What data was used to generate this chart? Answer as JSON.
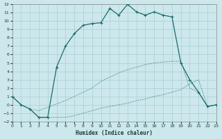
{
  "xlabel": "Humidex (Indice chaleur)",
  "bg_color": "#cce8ec",
  "grid_color": "#aacdd4",
  "line_color": "#1a6b6b",
  "xlim": [
    0,
    23
  ],
  "ylim": [
    -2,
    12
  ],
  "xticks": [
    0,
    1,
    2,
    3,
    4,
    5,
    6,
    7,
    8,
    9,
    10,
    11,
    12,
    13,
    14,
    15,
    16,
    17,
    18,
    19,
    20,
    21,
    22,
    23
  ],
  "yticks": [
    -2,
    -1,
    0,
    1,
    2,
    3,
    4,
    5,
    6,
    7,
    8,
    9,
    10,
    11,
    12
  ],
  "curve1_x": [
    0,
    1,
    2,
    3,
    4,
    5,
    6,
    7,
    8,
    9,
    10,
    11,
    12,
    13,
    14,
    15,
    16,
    17,
    18,
    19,
    20,
    21,
    22,
    23
  ],
  "curve1_y": [
    1.0,
    0.0,
    -0.5,
    -1.5,
    -1.5,
    -1.5,
    -1.5,
    -1.3,
    -1.0,
    -0.7,
    -0.4,
    -0.2,
    0.0,
    0.2,
    0.5,
    0.7,
    1.0,
    1.2,
    1.5,
    1.8,
    2.5,
    3.0,
    -0.2,
    0.0
  ],
  "curve2_x": [
    0,
    1,
    2,
    3,
    4,
    5,
    6,
    7,
    8,
    9,
    10,
    11,
    12,
    13,
    14,
    15,
    16,
    17,
    18,
    19,
    20,
    21,
    22,
    23
  ],
  "curve2_y": [
    1.0,
    0.0,
    -0.5,
    -0.7,
    -0.3,
    0.1,
    0.5,
    1.0,
    1.5,
    2.0,
    2.8,
    3.3,
    3.8,
    4.2,
    4.5,
    4.8,
    5.0,
    5.1,
    5.2,
    5.2,
    2.0,
    1.5,
    -0.2,
    0.0
  ],
  "curve3_x": [
    0,
    1,
    2,
    3,
    4,
    5,
    6,
    7,
    8,
    9,
    10,
    11,
    12,
    13,
    14,
    15,
    16,
    17,
    18,
    19,
    20,
    21,
    22,
    23
  ],
  "curve3_y": [
    1.0,
    0.0,
    -0.5,
    -1.5,
    -1.5,
    4.5,
    7.0,
    8.5,
    9.5,
    9.7,
    9.8,
    11.5,
    10.7,
    12.0,
    11.1,
    10.7,
    11.1,
    10.7,
    10.5,
    5.0,
    3.0,
    1.5,
    -0.2,
    0.0
  ]
}
